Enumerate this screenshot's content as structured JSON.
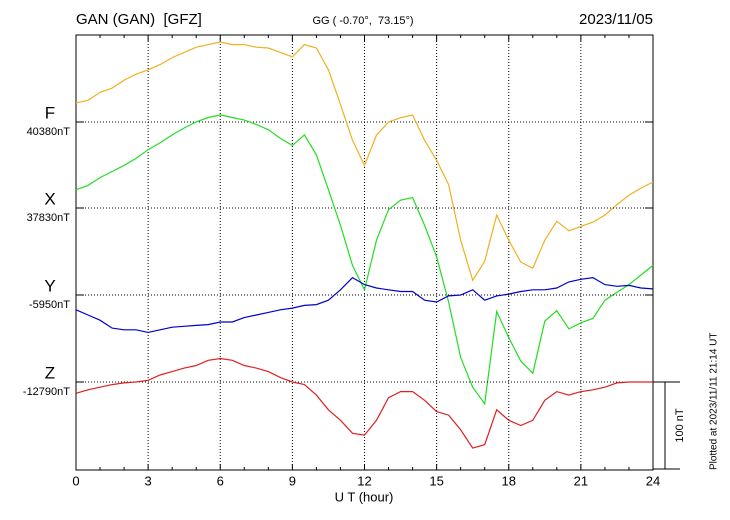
{
  "chart_data": {
    "type": "line",
    "title": "GAN (GAN)  [GFZ]",
    "subtitle": "GG ( -0.70°,  73.15°)",
    "date": "2023/11/05",
    "xlabel": "U T (hour)",
    "footnote": "Plotted at 2023/11/11 21:14 UT",
    "xlim": [
      0,
      24
    ],
    "xticks": [
      0,
      3,
      6,
      9,
      12,
      15,
      18,
      21,
      24
    ],
    "grid": true,
    "scale_bar": {
      "value": 100,
      "label": "100 nT"
    },
    "x": [
      0,
      0.5,
      1,
      1.5,
      2,
      2.5,
      3,
      3.5,
      4,
      4.5,
      5,
      5.5,
      6,
      6.5,
      7,
      7.5,
      8,
      8.5,
      9,
      9.5,
      10,
      10.5,
      11,
      11.5,
      12,
      12.5,
      13,
      13.5,
      14,
      14.5,
      15,
      15.5,
      16,
      16.5,
      17,
      17.5,
      18,
      18.5,
      19,
      19.5,
      20,
      20.5,
      21,
      21.5,
      22,
      22.5,
      23,
      23.5,
      24
    ],
    "series": [
      {
        "name": "F",
        "color": "#f0b020",
        "baseline": {
          "value": 40380,
          "label": "40380nT"
        },
        "values": [
          40402,
          40405,
          40414,
          40419,
          40428,
          40435,
          40440,
          40446,
          40454,
          40460,
          40466,
          40469,
          40472,
          40469,
          40469,
          40466,
          40465,
          40460,
          40455,
          40469,
          40465,
          40440,
          40400,
          40359,
          40330,
          40365,
          40380,
          40385,
          40388,
          40359,
          40336,
          40308,
          40244,
          40198,
          40220,
          40273,
          40244,
          40219,
          40212,
          40244,
          40266,
          40255,
          40260,
          40265,
          40273,
          40285,
          40296,
          40304,
          40311
        ]
      },
      {
        "name": "X",
        "color": "#22dd22",
        "baseline": {
          "value": 37830,
          "label": "37830nT"
        },
        "values": [
          37851,
          37856,
          37865,
          37872,
          37879,
          37887,
          37897,
          37905,
          37914,
          37922,
          37929,
          37934,
          37937,
          37934,
          37931,
          37926,
          37920,
          37910,
          37902,
          37914,
          37891,
          37851,
          37810,
          37764,
          37736,
          37793,
          37828,
          37839,
          37842,
          37810,
          37774,
          37722,
          37658,
          37624,
          37605,
          37711,
          37681,
          37654,
          37640,
          37700,
          37712,
          37691,
          37698,
          37703,
          37724,
          37733,
          37742,
          37753,
          37764
        ]
      },
      {
        "name": "Y",
        "color": "#0000cc",
        "baseline": {
          "value": -5950,
          "label": "-5950nT"
        },
        "values": [
          -5967,
          -5973,
          -5979,
          -5988,
          -5990,
          -5990,
          -5993,
          -5990,
          -5987,
          -5986,
          -5985,
          -5984,
          -5981,
          -5981,
          -5976,
          -5973,
          -5970,
          -5967,
          -5965,
          -5962,
          -5961,
          -5956,
          -5944,
          -5930,
          -5938,
          -5942,
          -5944,
          -5946,
          -5946,
          -5956,
          -5958,
          -5951,
          -5950,
          -5944,
          -5956,
          -5951,
          -5949,
          -5946,
          -5944,
          -5944,
          -5942,
          -5935,
          -5932,
          -5930,
          -5938,
          -5940,
          -5939,
          -5942,
          -5943
        ]
      },
      {
        "name": "Z",
        "color": "#e02020",
        "baseline": {
          "value": -12790,
          "label": "-12790nT"
        },
        "values": [
          -12803,
          -12799,
          -12796,
          -12793,
          -12791,
          -12790,
          -12788,
          -12782,
          -12778,
          -12774,
          -12771,
          -12765,
          -12763,
          -12765,
          -12771,
          -12774,
          -12778,
          -12785,
          -12790,
          -12793,
          -12805,
          -12822,
          -12834,
          -12849,
          -12851,
          -12834,
          -12808,
          -12801,
          -12801,
          -12811,
          -12824,
          -12828,
          -12845,
          -12866,
          -12862,
          -12822,
          -12834,
          -12840,
          -12834,
          -12811,
          -12801,
          -12805,
          -12801,
          -12799,
          -12796,
          -12791,
          -12790,
          -12790,
          -12790
        ]
      }
    ]
  }
}
